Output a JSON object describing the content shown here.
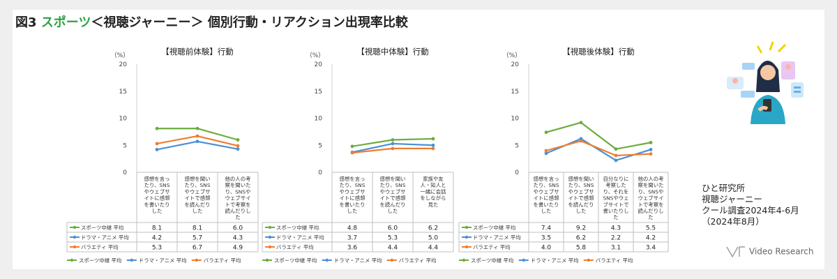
{
  "figure": {
    "title_prefix": "図3",
    "title_highlight": "スポーツ",
    "title_rest": "＜視聴ジャーニー＞ 個別行動・リアクション出現率比較"
  },
  "colors": {
    "sports": "#6aad3c",
    "drama": "#4a8fd6",
    "variety": "#ee7d31"
  },
  "legend": [
    "スポーツ中継 平均",
    "ドラマ・アニメ 平均",
    "バラエティ 平均"
  ],
  "footnote": [
    "ひと研究所",
    "視聴ジャーニー",
    "クール調査2024年4-6月",
    "（2024年8月）"
  ],
  "logo_text": "Video Research",
  "chart_data": [
    {
      "type": "line",
      "title": "【視聴前体験】行動",
      "unit": "（%）",
      "ylim": [
        0,
        20
      ],
      "yticks": [
        0,
        5,
        10,
        15,
        20
      ],
      "categories": [
        [
          "感想を言っ",
          "たり、SNS",
          "やウェブサ",
          "イトに感想",
          "を書いたり",
          "した"
        ],
        [
          "感想を聞い",
          "たり、SNS",
          "やウェブサ",
          "イトで感想",
          "を読んだり",
          "した"
        ],
        [
          "他の人の考",
          "察を聞いた",
          "り、SNSや",
          "ウェブサイ",
          "トで考察を",
          "読んだりし",
          "た"
        ]
      ],
      "series": [
        {
          "name": "スポーツ中継 平均",
          "values": [
            8.1,
            8.1,
            6.0
          ]
        },
        {
          "name": "ドラマ・アニメ 平均",
          "values": [
            4.2,
            5.7,
            4.3
          ]
        },
        {
          "name": "バラエティ 平均",
          "values": [
            5.3,
            6.7,
            4.9
          ]
        }
      ]
    },
    {
      "type": "line",
      "title": "【視聴中体験】行動",
      "unit": "（%）",
      "ylim": [
        0,
        20
      ],
      "yticks": [
        0,
        5,
        10,
        15,
        20
      ],
      "categories": [
        [
          "感想を言っ",
          "たり、SNS",
          "やウェブサ",
          "イトに感想",
          "を書いたり",
          "した"
        ],
        [
          "感想を聞い",
          "たり、SNS",
          "やウェブサ",
          "イトで感想",
          "を読んだり",
          "した"
        ],
        [
          "家族や友",
          "人・知人と",
          "一緒に会話",
          "をしながら",
          "見た"
        ]
      ],
      "series": [
        {
          "name": "スポーツ中継 平均",
          "values": [
            4.8,
            6.0,
            6.2
          ]
        },
        {
          "name": "ドラマ・アニメ 平均",
          "values": [
            3.7,
            5.3,
            5.0
          ]
        },
        {
          "name": "バラエティ 平均",
          "values": [
            3.6,
            4.4,
            4.4
          ]
        }
      ]
    },
    {
      "type": "line",
      "title": "【視聴後体験】行動",
      "unit": "（%）",
      "ylim": [
        0,
        20
      ],
      "yticks": [
        0,
        5,
        10,
        15,
        20
      ],
      "categories": [
        [
          "感想を言っ",
          "たり、SNS",
          "やウェブサ",
          "イトに感想",
          "を書いたり",
          "した"
        ],
        [
          "感想を聞い",
          "たり、SNS",
          "やウェブサ",
          "イトで感想",
          "を読んだり",
          "した"
        ],
        [
          "自分なりに",
          "考察した",
          "り、それを",
          "SNSやウェ",
          "ブサイトで",
          "書いたりし",
          "た"
        ],
        [
          "他の人の考",
          "察を聞いた",
          "り、SNSや",
          "ウェブサイ",
          "トで考察を",
          "読んだりし",
          "た"
        ]
      ],
      "series": [
        {
          "name": "スポーツ中継 平均",
          "values": [
            7.4,
            9.2,
            4.3,
            5.5
          ]
        },
        {
          "name": "ドラマ・アニメ 平均",
          "values": [
            3.5,
            6.2,
            2.2,
            4.2
          ]
        },
        {
          "name": "バラエティ 平均",
          "values": [
            4.0,
            5.8,
            3.1,
            3.4
          ]
        }
      ]
    }
  ]
}
